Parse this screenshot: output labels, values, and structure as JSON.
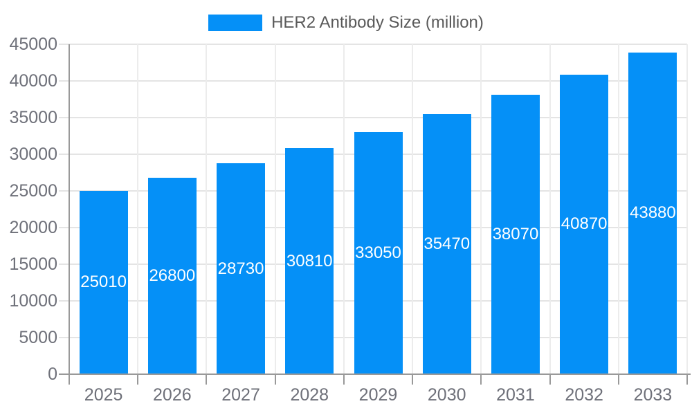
{
  "chart_data": {
    "type": "bar",
    "title": "HER2 Antibody Size (million)",
    "categories": [
      "2025",
      "2026",
      "2027",
      "2028",
      "2029",
      "2030",
      "2031",
      "2032",
      "2033"
    ],
    "values": [
      25010,
      26800,
      28730,
      30810,
      33050,
      35470,
      38070,
      40870,
      43880
    ],
    "xlabel": "",
    "ylabel": "",
    "ylim": [
      0,
      45000
    ],
    "ytick_step": 5000,
    "grid": true,
    "legend_position": "top-center",
    "bar_value_labels": "inside-center"
  },
  "colors": {
    "bar": "#0590F7",
    "bar_label": "#FFFFFF",
    "axis_line": "#999999",
    "grid_line_h": "#E4E4E4",
    "grid_line_v": "#ECECEC",
    "tick_label": "#6E7079",
    "legend_text": "#5A5A5A",
    "background": "#FFFFFF"
  }
}
